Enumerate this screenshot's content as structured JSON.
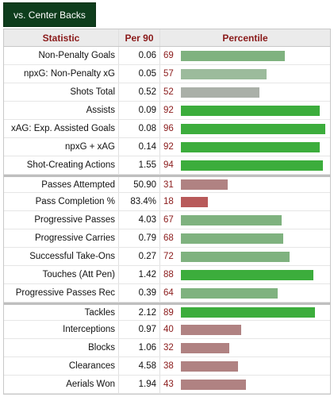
{
  "tab": {
    "label": "vs. Center Backs"
  },
  "header": {
    "statistic": "Statistic",
    "per90": "Per 90",
    "percentile": "Percentile"
  },
  "colors": {
    "high": "#3cad3c",
    "mid_green": "#7fb27f",
    "pale_green": "#9cbb9c",
    "gray": "#aab0a8",
    "mid_red": "#b08282",
    "low_red": "#b85a5a"
  },
  "rows": [
    {
      "stat": "Non-Penalty Goals",
      "per90": "0.06",
      "pct": "69",
      "pct_value": 69,
      "tone": "mid_green"
    },
    {
      "stat": "npxG: Non-Penalty xG",
      "per90": "0.05",
      "pct": "57",
      "pct_value": 57,
      "tone": "pale_green"
    },
    {
      "stat": "Shots Total",
      "per90": "0.52",
      "pct": "52",
      "pct_value": 52,
      "tone": "gray"
    },
    {
      "stat": "Assists",
      "per90": "0.09",
      "pct": "92",
      "pct_value": 92,
      "tone": "high"
    },
    {
      "stat": "xAG: Exp. Assisted Goals",
      "per90": "0.08",
      "pct": "96",
      "pct_value": 96,
      "tone": "high"
    },
    {
      "stat": "npxG + xAG",
      "per90": "0.14",
      "pct": "92",
      "pct_value": 92,
      "tone": "high"
    },
    {
      "stat": "Shot-Creating Actions",
      "per90": "1.55",
      "pct": "94",
      "pct_value": 94,
      "tone": "high"
    },
    {
      "stat": "Passes Attempted",
      "per90": "50.90",
      "pct": "31",
      "pct_value": 31,
      "tone": "mid_red",
      "group_start": true
    },
    {
      "stat": "Pass Completion %",
      "per90": "83.4%",
      "pct": "18",
      "pct_value": 18,
      "tone": "low_red"
    },
    {
      "stat": "Progressive Passes",
      "per90": "4.03",
      "pct": "67",
      "pct_value": 67,
      "tone": "mid_green"
    },
    {
      "stat": "Progressive Carries",
      "per90": "0.79",
      "pct": "68",
      "pct_value": 68,
      "tone": "mid_green"
    },
    {
      "stat": "Successful Take-Ons",
      "per90": "0.27",
      "pct": "72",
      "pct_value": 72,
      "tone": "mid_green"
    },
    {
      "stat": "Touches (Att Pen)",
      "per90": "1.42",
      "pct": "88",
      "pct_value": 88,
      "tone": "high"
    },
    {
      "stat": "Progressive Passes Rec",
      "per90": "0.39",
      "pct": "64",
      "pct_value": 64,
      "tone": "mid_green"
    },
    {
      "stat": "Tackles",
      "per90": "2.12",
      "pct": "89",
      "pct_value": 89,
      "tone": "high",
      "group_start": true
    },
    {
      "stat": "Interceptions",
      "per90": "0.97",
      "pct": "40",
      "pct_value": 40,
      "tone": "mid_red"
    },
    {
      "stat": "Blocks",
      "per90": "1.06",
      "pct": "32",
      "pct_value": 32,
      "tone": "mid_red"
    },
    {
      "stat": "Clearances",
      "per90": "4.58",
      "pct": "38",
      "pct_value": 38,
      "tone": "mid_red"
    },
    {
      "stat": "Aerials Won",
      "per90": "1.94",
      "pct": "43",
      "pct_value": 43,
      "tone": "mid_red"
    }
  ]
}
